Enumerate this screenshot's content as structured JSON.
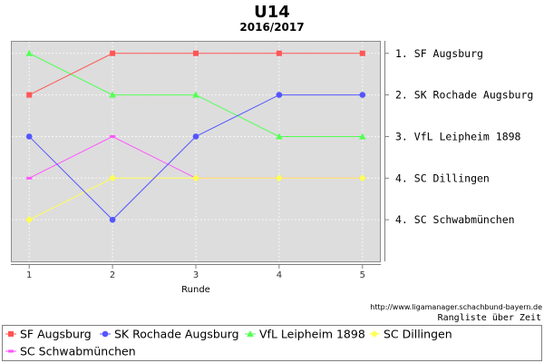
{
  "chart_data": {
    "type": "line",
    "title": "U14",
    "subtitle": "2016/2017",
    "xlabel": "Runde",
    "ylabel": "",
    "x": [
      1,
      2,
      3,
      4,
      5
    ],
    "xlim": [
      0.78,
      5.22
    ],
    "ylim": [
      0.7,
      6.0
    ],
    "y_inverted": true,
    "y_axis_position": "right",
    "y_tick_positions": [
      1,
      2,
      3,
      4,
      5
    ],
    "y_tick_labels": [
      "1. SF Augsburg",
      "2. SK Rochade Augsburg",
      "3. VfL Leipheim 1898",
      "4. SC Dillingen",
      "4. SC Schwabmünchen"
    ],
    "grid": true,
    "legend_position": "bottom",
    "series": [
      {
        "name": "SF Augsburg",
        "color": "#ff5555",
        "marker": "square",
        "values": [
          2,
          1,
          1,
          1,
          1
        ]
      },
      {
        "name": "SK Rochade Augsburg",
        "color": "#5555ff",
        "marker": "circle",
        "values": [
          3,
          5,
          3,
          2,
          2
        ]
      },
      {
        "name": "VfL Leipheim 1898",
        "color": "#55ff55",
        "marker": "triangle",
        "values": [
          1,
          2,
          2,
          3,
          3
        ]
      },
      {
        "name": "SC Dillingen",
        "color": "#ffff55",
        "marker": "diamond",
        "values": [
          5,
          4,
          4,
          4,
          4
        ]
      },
      {
        "name": "SC Schwabmünchen",
        "color": "#ff55ff",
        "marker": "dash",
        "values": [
          4,
          3,
          4,
          4,
          4
        ]
      }
    ]
  },
  "source_url": "http://www.ligamanager.schachbund-bayern.de",
  "caption": "Rangliste über Zeit"
}
